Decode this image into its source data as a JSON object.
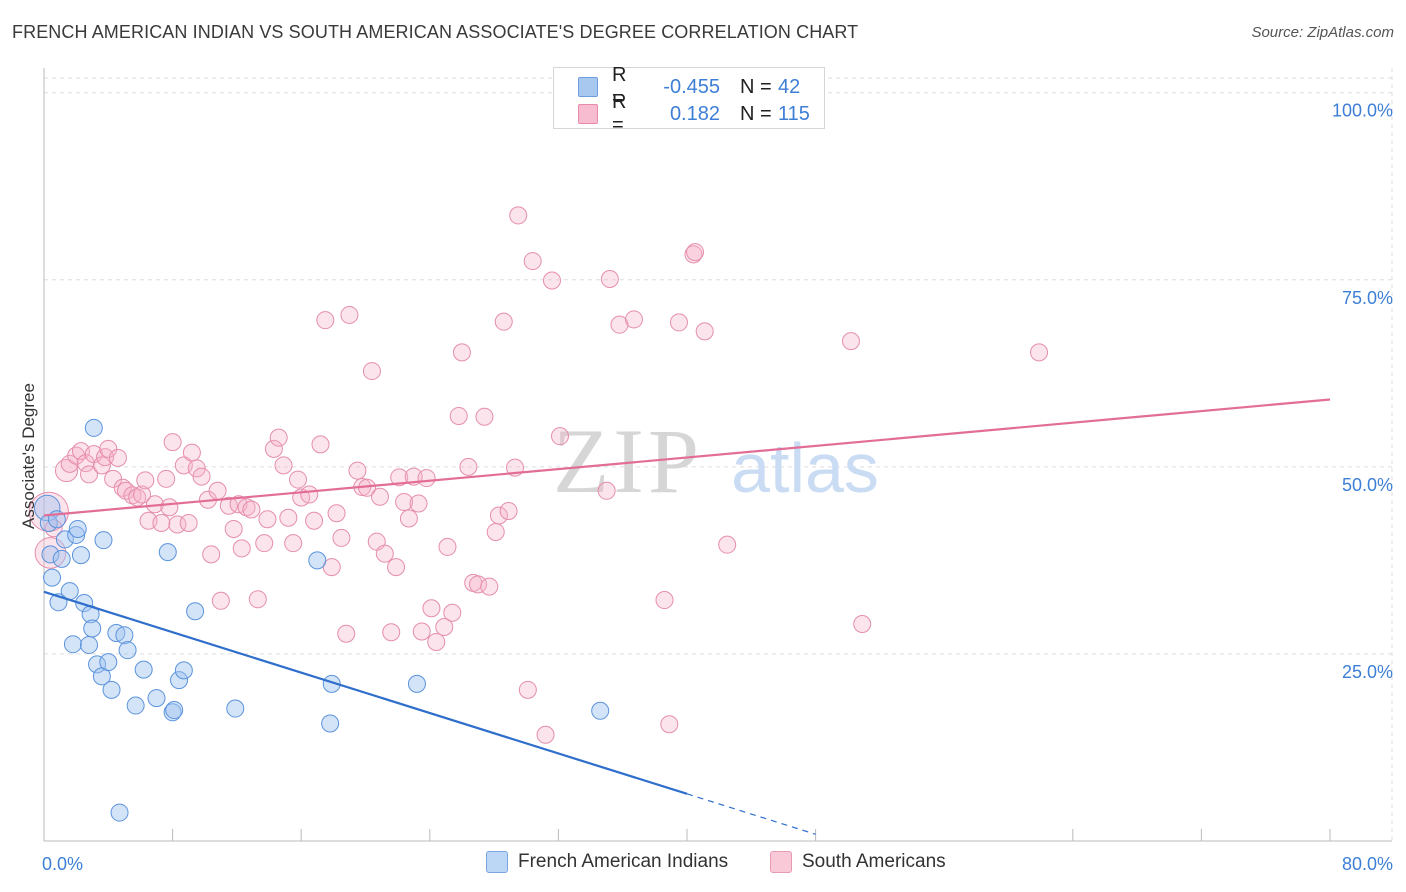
{
  "title": "FRENCH AMERICAN INDIAN VS SOUTH AMERICAN ASSOCIATE'S DEGREE CORRELATION CHART",
  "source": "Source: ZipAtlas.com",
  "watermark": {
    "zip": "ZIP",
    "atlas": "atlas"
  },
  "legend_top": {
    "rows": [
      {
        "swatch_color": "#a9c8f0",
        "swatch_border": "#6d9fe0",
        "r_label": "R =",
        "r_value": "-0.455",
        "n_label": "N =",
        "n_value": "42"
      },
      {
        "swatch_color": "#f7bcd0",
        "swatch_border": "#e88aaa",
        "r_label": "R =",
        "r_value": "0.182",
        "n_label": "N =",
        "n_value": "115"
      }
    ]
  },
  "legend_bottom": [
    {
      "label": "French American Indians",
      "swatch_color": "#bcd6f6",
      "swatch_border": "#7aa5e0"
    },
    {
      "label": "South Americans",
      "swatch_color": "#f9c9d8",
      "swatch_border": "#e79ab4"
    }
  ],
  "colors": {
    "blue_point_fill": "rgba(160,196,240,0.45)",
    "blue_point_stroke": "#5b93dc",
    "blue_line": "#2f6fcb",
    "pink_point_fill": "rgba(245,178,201,0.35)",
    "pink_point_stroke": "#e58eae",
    "pink_line": "#e26d96",
    "grid": "#dddddd",
    "tick_label": "#3d7fd6"
  },
  "chart_data": {
    "type": "scatter",
    "title": "FRENCH AMERICAN INDIAN VS SOUTH AMERICAN ASSOCIATE'S DEGREE CORRELATION CHART",
    "xlabel": "",
    "ylabel": "Associate's Degree",
    "xlim": [
      0,
      80
    ],
    "ylim": [
      0,
      103.3
    ],
    "x_tick_labels": [
      {
        "value": 0,
        "label": "0.0%"
      },
      {
        "value": 80,
        "label": "80.0%"
      }
    ],
    "x_minor_ticks": [
      8,
      16,
      24,
      32,
      40,
      48,
      64,
      72
    ],
    "y_ticks": [
      {
        "value": 100,
        "label": "100.0%"
      },
      {
        "value": 75,
        "label": "75.0%"
      },
      {
        "value": 50,
        "label": "50.0%"
      },
      {
        "value": 25,
        "label": "25.0%"
      }
    ],
    "grid": true,
    "series": [
      {
        "name": "French American Indians",
        "color": "blue",
        "trend": {
          "x_start": 0,
          "y_start": 33.3,
          "x_solid_end": 40,
          "y_solid_end": 6.3,
          "x_dash_end": 48,
          "y_dash_end": 0.9
        },
        "points": [
          {
            "x": 0.2,
            "y": 44.5,
            "s": 1.5
          },
          {
            "x": 0.3,
            "y": 42.5
          },
          {
            "x": 0.5,
            "y": 35.2
          },
          {
            "x": 0.8,
            "y": 43.0
          },
          {
            "x": 0.9,
            "y": 31.9
          },
          {
            "x": 1.3,
            "y": 40.3
          },
          {
            "x": 1.6,
            "y": 33.4
          },
          {
            "x": 1.8,
            "y": 26.3
          },
          {
            "x": 2.0,
            "y": 40.9
          },
          {
            "x": 2.1,
            "y": 41.7
          },
          {
            "x": 2.3,
            "y": 38.2
          },
          {
            "x": 2.5,
            "y": 31.8
          },
          {
            "x": 2.8,
            "y": 26.2
          },
          {
            "x": 2.9,
            "y": 30.3
          },
          {
            "x": 3.0,
            "y": 28.4
          },
          {
            "x": 3.1,
            "y": 55.2
          },
          {
            "x": 3.3,
            "y": 23.6
          },
          {
            "x": 3.6,
            "y": 22.0
          },
          {
            "x": 3.7,
            "y": 40.2
          },
          {
            "x": 4.0,
            "y": 23.9
          },
          {
            "x": 4.2,
            "y": 20.2
          },
          {
            "x": 4.5,
            "y": 27.8
          },
          {
            "x": 4.7,
            "y": 3.8
          },
          {
            "x": 5.0,
            "y": 27.5
          },
          {
            "x": 5.2,
            "y": 25.5
          },
          {
            "x": 5.7,
            "y": 18.1
          },
          {
            "x": 6.2,
            "y": 22.9
          },
          {
            "x": 7.0,
            "y": 19.1
          },
          {
            "x": 7.7,
            "y": 38.6
          },
          {
            "x": 8.0,
            "y": 17.2
          },
          {
            "x": 8.1,
            "y": 17.5
          },
          {
            "x": 8.4,
            "y": 21.5
          },
          {
            "x": 8.7,
            "y": 22.8
          },
          {
            "x": 9.4,
            "y": 30.7
          },
          {
            "x": 11.9,
            "y": 17.7
          },
          {
            "x": 17.0,
            "y": 37.5
          },
          {
            "x": 17.8,
            "y": 15.7
          },
          {
            "x": 17.9,
            "y": 21.0
          },
          {
            "x": 23.2,
            "y": 21.0
          },
          {
            "x": 34.6,
            "y": 17.4
          },
          {
            "x": 0.4,
            "y": 38.3
          },
          {
            "x": 1.1,
            "y": 37.7
          }
        ]
      },
      {
        "name": "South Americans",
        "color": "pink",
        "trend": {
          "x_start": 0,
          "y_start": 43.5,
          "x_end": 80,
          "y_end": 59.0
        },
        "points": [
          {
            "x": 0.3,
            "y": 44.0,
            "s": 2.3
          },
          {
            "x": 0.4,
            "y": 38.5,
            "s": 1.8
          },
          {
            "x": 0.6,
            "y": 41.8
          },
          {
            "x": 1.4,
            "y": 49.5,
            "s": 1.3
          },
          {
            "x": 1.6,
            "y": 50.4
          },
          {
            "x": 2.0,
            "y": 51.5
          },
          {
            "x": 2.3,
            "y": 52.1
          },
          {
            "x": 2.6,
            "y": 50.5
          },
          {
            "x": 2.8,
            "y": 49.0
          },
          {
            "x": 3.1,
            "y": 51.7
          },
          {
            "x": 3.6,
            "y": 50.2
          },
          {
            "x": 3.8,
            "y": 51.3
          },
          {
            "x": 4.0,
            "y": 52.4
          },
          {
            "x": 4.3,
            "y": 48.4
          },
          {
            "x": 4.6,
            "y": 51.2
          },
          {
            "x": 4.9,
            "y": 47.2
          },
          {
            "x": 5.1,
            "y": 46.8
          },
          {
            "x": 5.5,
            "y": 46.2
          },
          {
            "x": 5.8,
            "y": 45.9
          },
          {
            "x": 6.1,
            "y": 46.3
          },
          {
            "x": 6.3,
            "y": 48.2
          },
          {
            "x": 6.5,
            "y": 42.8
          },
          {
            "x": 6.9,
            "y": 45.0
          },
          {
            "x": 7.3,
            "y": 42.5
          },
          {
            "x": 7.6,
            "y": 48.4
          },
          {
            "x": 7.8,
            "y": 44.6
          },
          {
            "x": 8.0,
            "y": 53.3
          },
          {
            "x": 8.3,
            "y": 42.3
          },
          {
            "x": 8.7,
            "y": 50.2
          },
          {
            "x": 9.0,
            "y": 42.5
          },
          {
            "x": 9.2,
            "y": 51.9
          },
          {
            "x": 9.5,
            "y": 49.8
          },
          {
            "x": 9.8,
            "y": 48.7
          },
          {
            "x": 10.2,
            "y": 45.6
          },
          {
            "x": 10.4,
            "y": 38.3
          },
          {
            "x": 10.8,
            "y": 46.8
          },
          {
            "x": 11.0,
            "y": 32.1
          },
          {
            "x": 11.5,
            "y": 44.8
          },
          {
            "x": 11.8,
            "y": 41.7
          },
          {
            "x": 12.1,
            "y": 45.0
          },
          {
            "x": 12.3,
            "y": 39.1
          },
          {
            "x": 12.6,
            "y": 44.6
          },
          {
            "x": 12.9,
            "y": 44.3
          },
          {
            "x": 13.3,
            "y": 32.3
          },
          {
            "x": 13.7,
            "y": 39.8
          },
          {
            "x": 13.9,
            "y": 43.0
          },
          {
            "x": 14.3,
            "y": 52.4
          },
          {
            "x": 14.6,
            "y": 53.9
          },
          {
            "x": 14.9,
            "y": 50.2
          },
          {
            "x": 15.2,
            "y": 43.2
          },
          {
            "x": 15.5,
            "y": 39.8
          },
          {
            "x": 15.8,
            "y": 48.3
          },
          {
            "x": 16.0,
            "y": 45.9
          },
          {
            "x": 16.5,
            "y": 46.3
          },
          {
            "x": 16.8,
            "y": 42.8
          },
          {
            "x": 17.2,
            "y": 53.0
          },
          {
            "x": 17.5,
            "y": 69.6
          },
          {
            "x": 17.9,
            "y": 36.6
          },
          {
            "x": 18.2,
            "y": 43.8
          },
          {
            "x": 18.5,
            "y": 40.5
          },
          {
            "x": 18.8,
            "y": 27.7
          },
          {
            "x": 19.0,
            "y": 70.3
          },
          {
            "x": 19.5,
            "y": 49.5
          },
          {
            "x": 19.8,
            "y": 47.3
          },
          {
            "x": 20.1,
            "y": 47.2
          },
          {
            "x": 20.4,
            "y": 62.8
          },
          {
            "x": 20.7,
            "y": 40.0
          },
          {
            "x": 20.9,
            "y": 46.0
          },
          {
            "x": 21.2,
            "y": 38.4
          },
          {
            "x": 21.6,
            "y": 27.9
          },
          {
            "x": 21.9,
            "y": 36.6
          },
          {
            "x": 22.1,
            "y": 48.6
          },
          {
            "x": 22.4,
            "y": 45.3
          },
          {
            "x": 22.7,
            "y": 43.1
          },
          {
            "x": 23.0,
            "y": 48.7
          },
          {
            "x": 23.3,
            "y": 45.1
          },
          {
            "x": 23.5,
            "y": 28.0
          },
          {
            "x": 23.8,
            "y": 48.5
          },
          {
            "x": 24.1,
            "y": 31.1
          },
          {
            "x": 24.4,
            "y": 26.6
          },
          {
            "x": 24.9,
            "y": 28.6
          },
          {
            "x": 25.1,
            "y": 39.3
          },
          {
            "x": 25.4,
            "y": 30.5
          },
          {
            "x": 25.8,
            "y": 56.8
          },
          {
            "x": 26.0,
            "y": 65.3
          },
          {
            "x": 26.4,
            "y": 50.0
          },
          {
            "x": 26.7,
            "y": 34.5
          },
          {
            "x": 27.0,
            "y": 34.3
          },
          {
            "x": 27.4,
            "y": 56.7
          },
          {
            "x": 27.7,
            "y": 34.0
          },
          {
            "x": 28.1,
            "y": 41.3
          },
          {
            "x": 28.3,
            "y": 43.5
          },
          {
            "x": 28.6,
            "y": 69.4
          },
          {
            "x": 28.9,
            "y": 44.1
          },
          {
            "x": 29.3,
            "y": 49.9
          },
          {
            "x": 29.5,
            "y": 83.6
          },
          {
            "x": 30.1,
            "y": 20.2
          },
          {
            "x": 30.4,
            "y": 77.5
          },
          {
            "x": 31.2,
            "y": 14.2
          },
          {
            "x": 31.6,
            "y": 74.9
          },
          {
            "x": 32.1,
            "y": 54.1
          },
          {
            "x": 35.0,
            "y": 46.8
          },
          {
            "x": 35.2,
            "y": 75.1
          },
          {
            "x": 35.8,
            "y": 69.0
          },
          {
            "x": 36.7,
            "y": 69.7
          },
          {
            "x": 38.6,
            "y": 32.2
          },
          {
            "x": 38.9,
            "y": 15.6
          },
          {
            "x": 39.5,
            "y": 69.3
          },
          {
            "x": 40.4,
            "y": 78.4
          },
          {
            "x": 40.5,
            "y": 78.7
          },
          {
            "x": 41.1,
            "y": 68.1
          },
          {
            "x": 42.5,
            "y": 39.6
          },
          {
            "x": 50.2,
            "y": 66.8
          },
          {
            "x": 50.9,
            "y": 29.0
          },
          {
            "x": 61.9,
            "y": 65.3
          }
        ]
      }
    ]
  }
}
